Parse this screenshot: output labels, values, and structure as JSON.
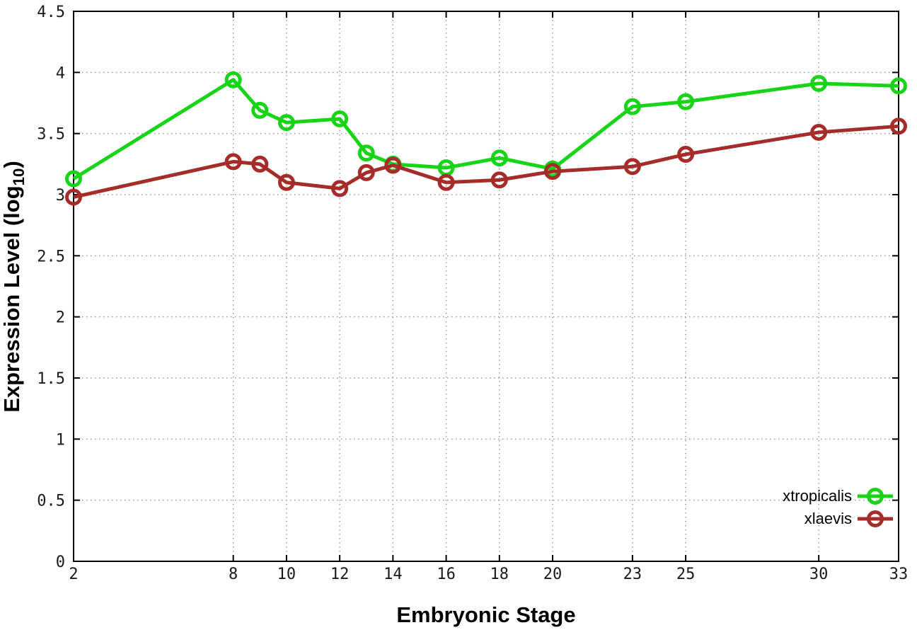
{
  "chart_data": {
    "type": "line",
    "title": "",
    "xlabel": "Embryonic Stage",
    "ylabel": "Expression Level (log10)",
    "ylabel_parts": {
      "pre": "Expression Level (log",
      "sub": "10",
      "post": ")"
    },
    "x": [
      2,
      8,
      9,
      10,
      12,
      13,
      14,
      16,
      18,
      20,
      23,
      25,
      30,
      33
    ],
    "series": [
      {
        "name": "xtropicalis",
        "color": "#17d417",
        "values": [
          3.13,
          3.94,
          3.69,
          3.59,
          3.62,
          3.34,
          3.25,
          3.22,
          3.3,
          3.21,
          3.72,
          3.76,
          3.91,
          3.89
        ]
      },
      {
        "name": "xlaevis",
        "color": "#a62c2a",
        "values": [
          2.98,
          3.27,
          3.25,
          3.1,
          3.05,
          3.18,
          3.24,
          3.1,
          3.12,
          3.19,
          3.23,
          3.33,
          3.51,
          3.56
        ]
      }
    ],
    "xlim": [
      2,
      33
    ],
    "ylim": [
      0,
      4.5
    ],
    "x_ticks": [
      2,
      8,
      10,
      12,
      14,
      16,
      18,
      20,
      23,
      25,
      30,
      33
    ],
    "x_tick_labels": [
      "2",
      "8",
      "10",
      "12",
      "14",
      "16",
      "18",
      "20",
      "23",
      "25",
      "30",
      "33"
    ],
    "y_ticks": [
      0,
      0.5,
      1,
      1.5,
      2,
      2.5,
      3,
      3.5,
      4,
      4.5
    ],
    "y_tick_labels": [
      "0",
      "0.5",
      "1",
      "1.5",
      "2",
      "2.5",
      "3",
      "3.5",
      "4",
      "4.5"
    ],
    "grid": true,
    "grid_color": "#9a9a9a",
    "axis_color": "#000000",
    "tick_label_color": "#1a1a1a",
    "legend_position": "inside-bottom-right",
    "marker": "open-circle",
    "line_width": 5,
    "marker_radius": 9.5
  }
}
